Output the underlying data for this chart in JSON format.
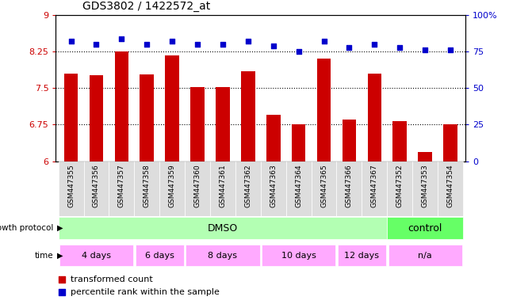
{
  "title": "GDS3802 / 1422572_at",
  "samples": [
    "GSM447355",
    "GSM447356",
    "GSM447357",
    "GSM447358",
    "GSM447359",
    "GSM447360",
    "GSM447361",
    "GSM447362",
    "GSM447363",
    "GSM447364",
    "GSM447365",
    "GSM447366",
    "GSM447367",
    "GSM447352",
    "GSM447353",
    "GSM447354"
  ],
  "bar_values": [
    7.8,
    7.76,
    8.25,
    7.78,
    8.18,
    7.52,
    7.52,
    7.85,
    6.95,
    6.75,
    8.1,
    6.85,
    7.8,
    6.82,
    6.18,
    6.75
  ],
  "percentile_values": [
    82,
    80,
    84,
    80,
    82,
    80,
    80,
    82,
    79,
    75,
    82,
    78,
    80,
    78,
    76,
    76
  ],
  "bar_color": "#cc0000",
  "percentile_color": "#0000cc",
  "ylim_left": [
    6,
    9
  ],
  "ylim_right": [
    0,
    100
  ],
  "yticks_left": [
    6,
    6.75,
    7.5,
    8.25,
    9
  ],
  "yticks_right": [
    0,
    25,
    50,
    75,
    100
  ],
  "ytick_labels_right": [
    "0",
    "25",
    "50",
    "75",
    "100%"
  ],
  "hlines": [
    6.75,
    7.5,
    8.25
  ],
  "growth_protocol_dmso_label": "DMSO",
  "growth_protocol_control_label": "control",
  "dmso_color": "#b3ffb3",
  "control_color": "#66ff66",
  "time_color": "#ffaaff",
  "legend_bar_label": "transformed count",
  "legend_pct_label": "percentile rank within the sample",
  "dmso_sample_count": 13,
  "control_sample_count": 3,
  "time_groups": [
    {
      "label": "4 days",
      "count": 3
    },
    {
      "label": "6 days",
      "count": 2
    },
    {
      "label": "8 days",
      "count": 3
    },
    {
      "label": "10 days",
      "count": 3
    },
    {
      "label": "12 days",
      "count": 2
    },
    {
      "label": "n/a",
      "count": 3
    }
  ],
  "sample_box_color": "#dddddd",
  "fig_width": 6.71,
  "fig_height": 3.84,
  "dpi": 100
}
